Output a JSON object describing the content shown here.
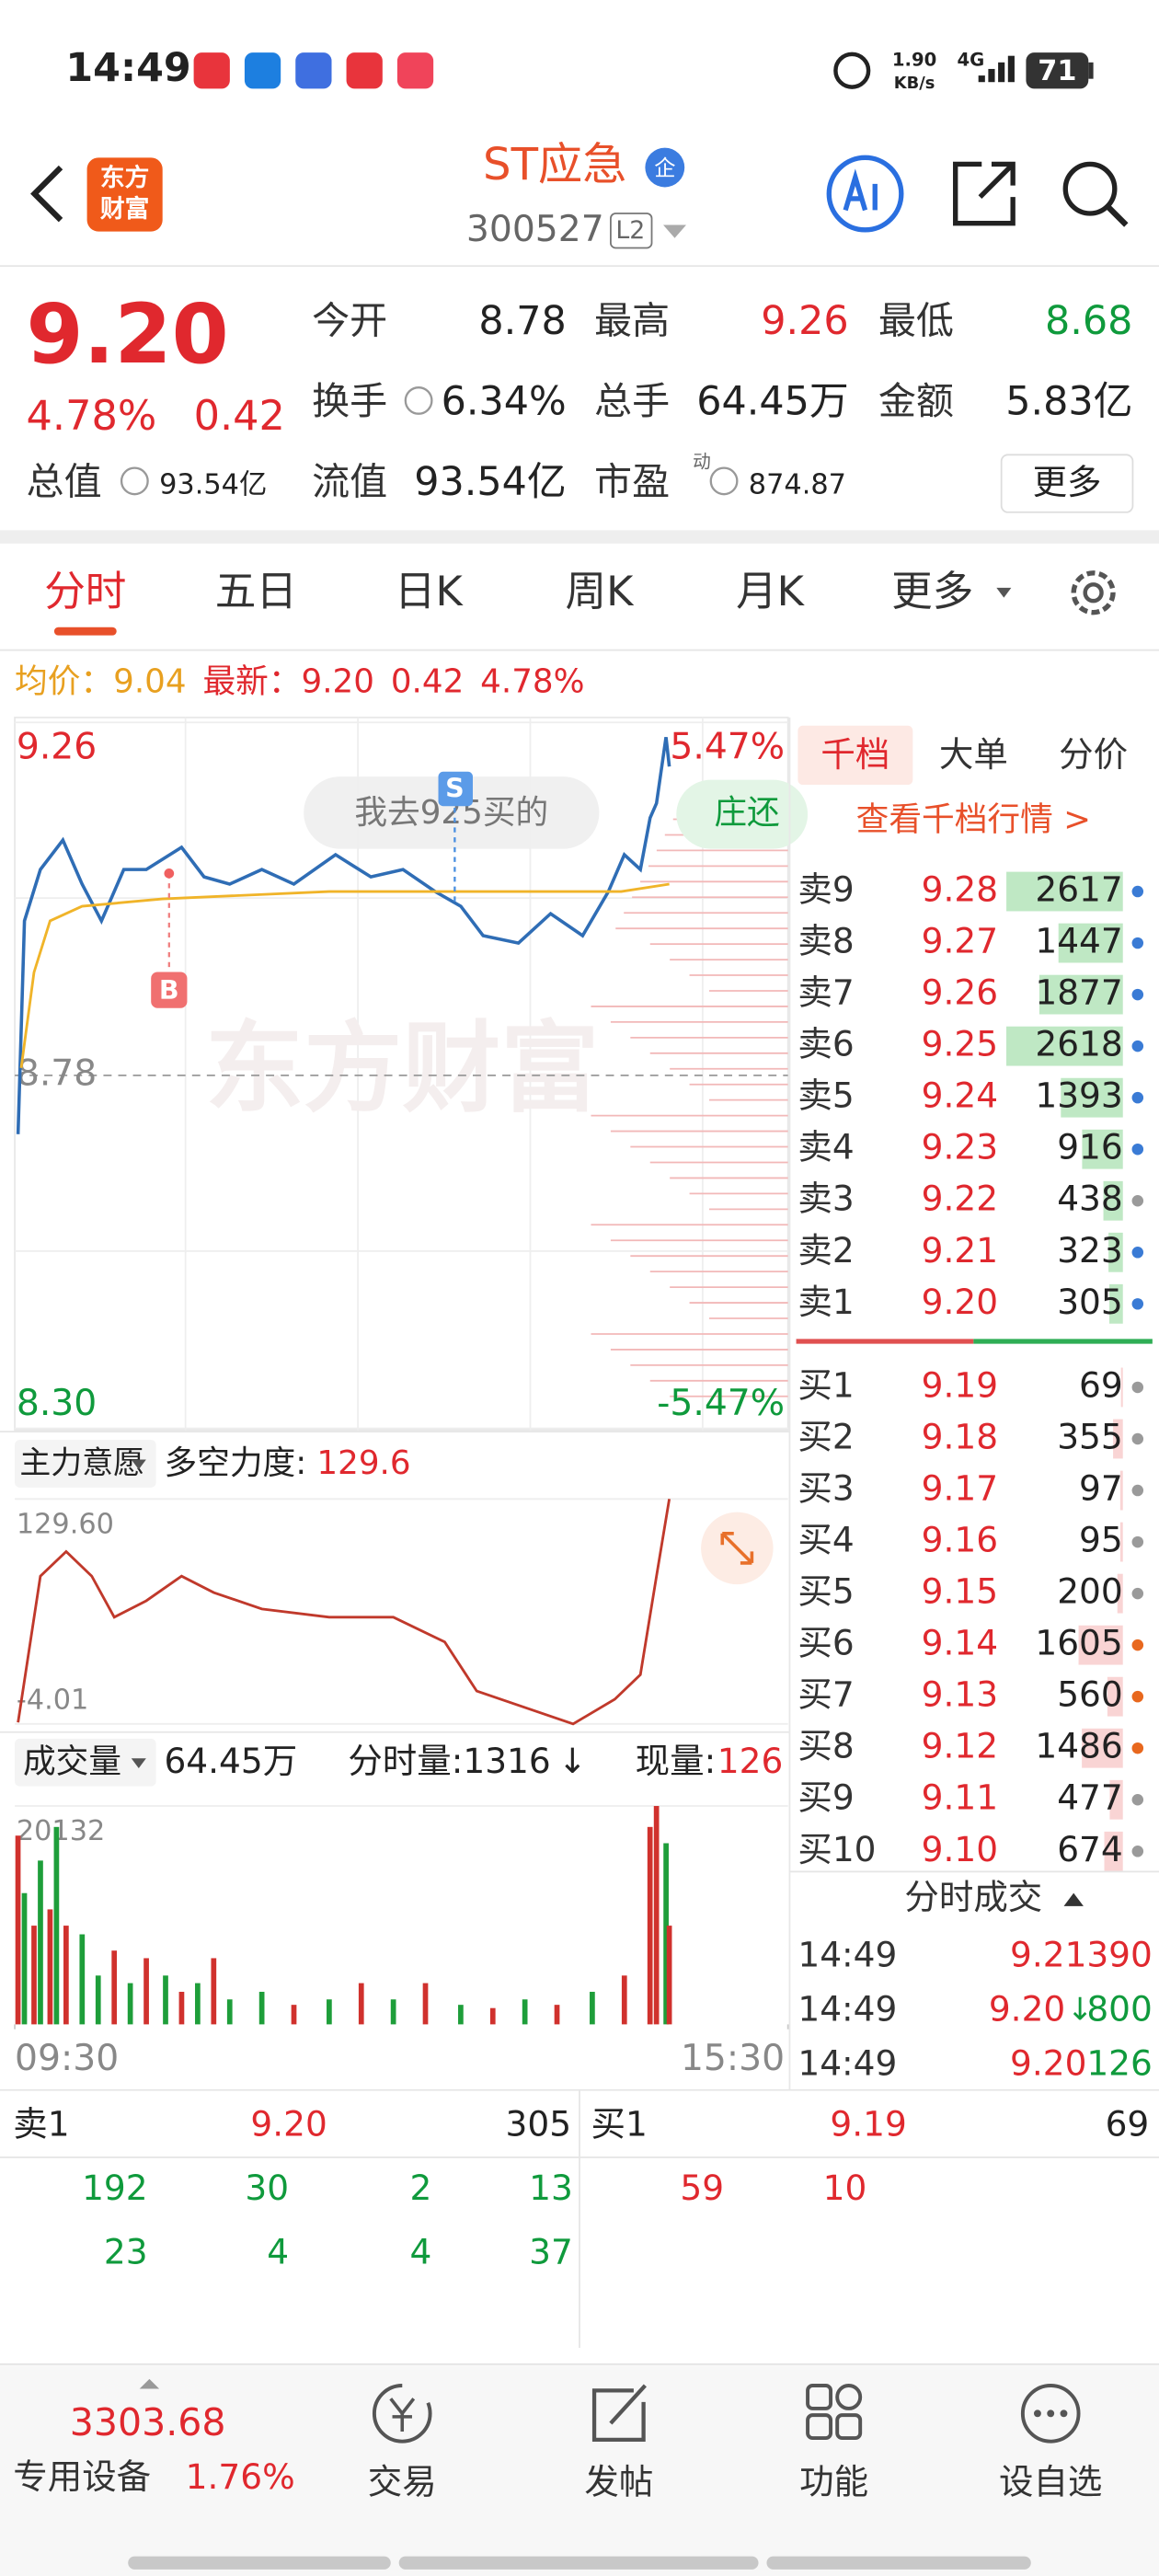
{
  "status_bar": {
    "time": "14:49",
    "net_speed": "1.90",
    "net_unit": "KB/s",
    "network": "4G",
    "battery": "71"
  },
  "header": {
    "logo": [
      "东方",
      "财富"
    ],
    "name": "ST应急",
    "badge": "企",
    "code": "300527",
    "level": "L2"
  },
  "quote": {
    "price": "9.20",
    "change_pct": "4.78%",
    "change": "0.42",
    "fields": [
      {
        "label": "今开",
        "value": "8.78"
      },
      {
        "label": "最高",
        "value": "9.26"
      },
      {
        "label": "最低",
        "value": "8.68"
      },
      {
        "label": "换手",
        "value": "6.34%"
      },
      {
        "label": "总手",
        "value": "64.45万"
      },
      {
        "label": "金额",
        "value": "5.83亿"
      },
      {
        "label": "总值",
        "value": "93.54亿"
      },
      {
        "label": "流值",
        "value": "93.54亿"
      },
      {
        "label": "市盈",
        "value": "874.87"
      }
    ],
    "pe_tag": "动",
    "more": "更多"
  },
  "tabs": [
    "分时",
    "五日",
    "日K",
    "周K",
    "月K",
    "更多"
  ],
  "legend": {
    "avg_label": "均价：",
    "avg": "9.04",
    "last_label": "最新：",
    "last": "9.20",
    "change": "0.42",
    "change_pct": "4.78%"
  },
  "annotations": {
    "watermark": "东方财富",
    "bubble": "我去925买的",
    "bubble2": "庄还",
    "sell_marker": "S",
    "buy_marker": "B"
  },
  "chart_data": [
    {
      "type": "line",
      "xlim": [
        0,
        241
      ],
      "ylim": [
        8.3,
        9.26
      ],
      "yticks": [
        9.26,
        8.78,
        {
          "value": 8.3,
          "label": "8.30"
        }
      ],
      "y2lim": [
        -5.47,
        5.47
      ],
      "y2ticks": [
        {
          "value": 5.47,
          "label": "5.47%"
        },
        {
          "value": -5.47,
          "label": "-5.47%"
        }
      ],
      "series": [
        {
          "color": "#2f6db5",
          "x": [
            1,
            3,
            8,
            15,
            21,
            27,
            34,
            41,
            52,
            59,
            67,
            77,
            87,
            100,
            111,
            121,
            131,
            139,
            146,
            157,
            167,
            177,
            185,
            190,
            195,
            198,
            200,
            203,
            204
          ],
          "values": [
            8.7,
            8.99,
            9.06,
            9.1,
            9.04,
            8.99,
            9.06,
            9.06,
            9.09,
            9.05,
            9.04,
            9.06,
            9.04,
            9.08,
            9.05,
            9.06,
            9.03,
            9.01,
            8.97,
            8.96,
            9.0,
            8.97,
            9.03,
            9.08,
            9.06,
            9.13,
            9.15,
            9.24,
            9.2
          ]
        },
        {
          "color": "#f0b429",
          "x": [
            2,
            6,
            11,
            21,
            46,
            98,
            149,
            189,
            204
          ],
          "values": [
            8.79,
            8.92,
            8.99,
            9.01,
            9.02,
            9.03,
            9.03,
            9.03,
            9.04
          ]
        }
      ]
    },
    {
      "type": "line",
      "indicator": "主力意愿",
      "label": "多空力度:",
      "current": 129.6,
      "xlim": [
        0,
        241
      ],
      "ylim": [
        -4.01,
        129.6
      ],
      "yticks": [
        {
          "value": 129.6,
          "label": "129.60"
        },
        -4.01
      ],
      "series": [
        {
          "color": "#c0392b",
          "x": [
            1,
            8,
            16,
            24,
            31,
            41,
            52,
            62,
            77,
            98,
            118,
            134,
            144,
            159,
            174,
            187,
            195,
            200,
            204
          ],
          "values": [
            -3.1,
            83.8,
            98.4,
            83.8,
            59.4,
            69.1,
            83.8,
            74.0,
            64.3,
            59.4,
            59.4,
            44.7,
            15.5,
            5.7,
            -4.0,
            10.6,
            25.2,
            83.8,
            129.6
          ]
        }
      ]
    },
    {
      "type": "bar",
      "indicator": "成交量",
      "total": "64.45万",
      "minute_label": "分时量:1316",
      "arrow": "↓",
      "now_label": "现量:",
      "now": 126,
      "xlim": [
        0,
        241
      ],
      "ylim": [
        0,
        20132
      ],
      "yticks": [
        20132
      ],
      "xticks": [
        {
          "value": 0,
          "label": "09:30"
        },
        {
          "value": 241,
          "label": "15:30"
        }
      ],
      "x": [
        1,
        3,
        6,
        8,
        11,
        13,
        16,
        21,
        26,
        31,
        36,
        41,
        47,
        52,
        57,
        62,
        67,
        77,
        87,
        98,
        108,
        118,
        128,
        139,
        149,
        159,
        169,
        180,
        190,
        198,
        200,
        203,
        204
      ],
      "values": [
        17400,
        12100,
        9100,
        15100,
        10600,
        18200,
        9100,
        8300,
        4500,
        6800,
        3800,
        6100,
        4500,
        3000,
        3800,
        6100,
        2300,
        3000,
        1800,
        2300,
        3800,
        2300,
        3800,
        1800,
        1500,
        2300,
        1800,
        3000,
        4500,
        18200,
        20132,
        16700,
        9100
      ],
      "colors": [
        "#d0312d",
        "#1e9e3a",
        "#d0312d",
        "#1e9e3a",
        "#d0312d",
        "#1e9e3a",
        "#d0312d",
        "#1e9e3a",
        "#1e9e3a",
        "#d0312d",
        "#1e9e3a",
        "#d0312d",
        "#1e9e3a",
        "#d0312d",
        "#1e9e3a",
        "#d0312d",
        "#1e9e3a",
        "#1e9e3a",
        "#d0312d",
        "#1e9e3a",
        "#d0312d",
        "#1e9e3a",
        "#d0312d",
        "#1e9e3a",
        "#d0312d",
        "#1e9e3a",
        "#d0312d",
        "#1e9e3a",
        "#d0312d",
        "#d0312d",
        "#d0312d",
        "#1e9e3a",
        "#d0312d"
      ]
    }
  ],
  "order_book": {
    "tabs": [
      "千档",
      "大单",
      "分价"
    ],
    "link": "查看千档行情 >",
    "asks": [
      {
        "label": "卖9",
        "price": "9.28",
        "qty": 2617,
        "dot": "#3a7bd5"
      },
      {
        "label": "卖8",
        "price": "9.27",
        "qty": 1447,
        "dot": "#3a7bd5"
      },
      {
        "label": "卖7",
        "price": "9.26",
        "qty": 1877,
        "dot": "#3a7bd5"
      },
      {
        "label": "卖6",
        "price": "9.25",
        "qty": 2618,
        "dot": "#3a7bd5"
      },
      {
        "label": "卖5",
        "price": "9.24",
        "qty": 1393,
        "dot": "#3a7bd5"
      },
      {
        "label": "卖4",
        "price": "9.23",
        "qty": 916,
        "dot": "#3a7bd5"
      },
      {
        "label": "卖3",
        "price": "9.22",
        "qty": 438,
        "dot": "#9a9a9a"
      },
      {
        "label": "卖2",
        "price": "9.21",
        "qty": 323,
        "dot": "#3a7bd5"
      },
      {
        "label": "卖1",
        "price": "9.20",
        "qty": 305,
        "dot": "#3a7bd5"
      }
    ],
    "bids": [
      {
        "label": "买1",
        "price": "9.19",
        "qty": 69,
        "dot": "#9a9a9a"
      },
      {
        "label": "买2",
        "price": "9.18",
        "qty": 355,
        "dot": "#9a9a9a"
      },
      {
        "label": "买3",
        "price": "9.17",
        "qty": 97,
        "dot": "#9a9a9a"
      },
      {
        "label": "买4",
        "price": "9.16",
        "qty": 95,
        "dot": "#9a9a9a"
      },
      {
        "label": "买5",
        "price": "9.15",
        "qty": 200,
        "dot": "#9a9a9a"
      },
      {
        "label": "买6",
        "price": "9.14",
        "qty": 1605,
        "dot": "#e8681e"
      },
      {
        "label": "买7",
        "price": "9.13",
        "qty": 560,
        "dot": "#e8681e"
      },
      {
        "label": "买8",
        "price": "9.12",
        "qty": 1486,
        "dot": "#e8681e"
      },
      {
        "label": "买9",
        "price": "9.11",
        "qty": 477,
        "dot": "#9a9a9a"
      },
      {
        "label": "买10",
        "price": "9.10",
        "qty": 674,
        "dot": "#9a9a9a"
      }
    ]
  },
  "trades": {
    "title": "分时成交",
    "rows": [
      {
        "time": "14:49",
        "price": "9.21",
        "vol": "390"
      },
      {
        "time": "14:49",
        "price": "9.20",
        "arrow": "↓",
        "vol": "800"
      },
      {
        "time": "14:49",
        "price": "9.20",
        "vol": "126"
      }
    ]
  },
  "level1": {
    "ask_label": "卖1",
    "ask_price": "9.20",
    "ask_qty": "305",
    "bid_label": "买1",
    "bid_price": "9.19",
    "bid_qty": "69",
    "ask_queue": [
      [
        "192",
        "30",
        "2",
        "13"
      ],
      [
        "23",
        "4",
        "4",
        "37"
      ]
    ],
    "bid_queue": [
      [
        "59",
        "10"
      ]
    ]
  },
  "footer": {
    "index": "3303.68",
    "sector": "专用设备",
    "sector_change": "1.76%",
    "nav": [
      "交易",
      "发帖",
      "功能",
      "设自选"
    ]
  }
}
